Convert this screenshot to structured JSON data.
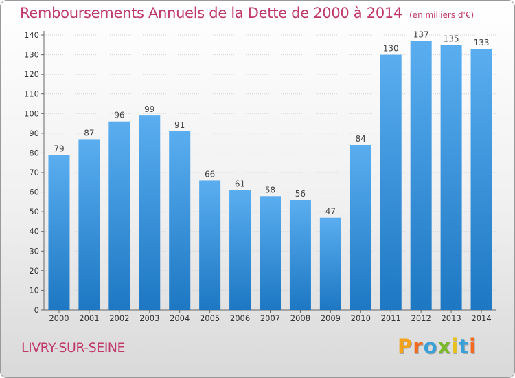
{
  "header": {
    "title": "Remboursements Annuels de la Dette de 2000 à 2014",
    "subtitle": "(en milliers d'€)"
  },
  "footer": {
    "city": "LIVRY-SUR-SEINE",
    "logo_letters": [
      "P",
      "r",
      "o",
      "x",
      "i",
      "t",
      "i"
    ],
    "logo_colors": [
      "#f7a21b",
      "#f26b21",
      "#3aa1d8",
      "#7ab929",
      "#e8c219",
      "#3aa1d8",
      "#f26b21"
    ]
  },
  "colors": {
    "bar_light": "#5aaef0",
    "bar_dark": "#1d77c2",
    "title": "#c0396b"
  },
  "chart_data": {
    "type": "bar",
    "title": "Remboursements Annuels de la Dette de 2000 à 2014",
    "xlabel": "",
    "ylabel": "",
    "categories": [
      "2000",
      "2001",
      "2002",
      "2003",
      "2004",
      "2005",
      "2006",
      "2007",
      "2008",
      "2009",
      "2010",
      "2011",
      "2012",
      "2013",
      "2014"
    ],
    "values": [
      79,
      87,
      96,
      99,
      91,
      66,
      61,
      58,
      56,
      47,
      84,
      130,
      137,
      135,
      133
    ],
    "ylim": [
      0,
      140
    ],
    "yticks": [
      0,
      10,
      20,
      30,
      40,
      50,
      60,
      70,
      80,
      90,
      100,
      110,
      120,
      130,
      140
    ],
    "grid": true
  }
}
